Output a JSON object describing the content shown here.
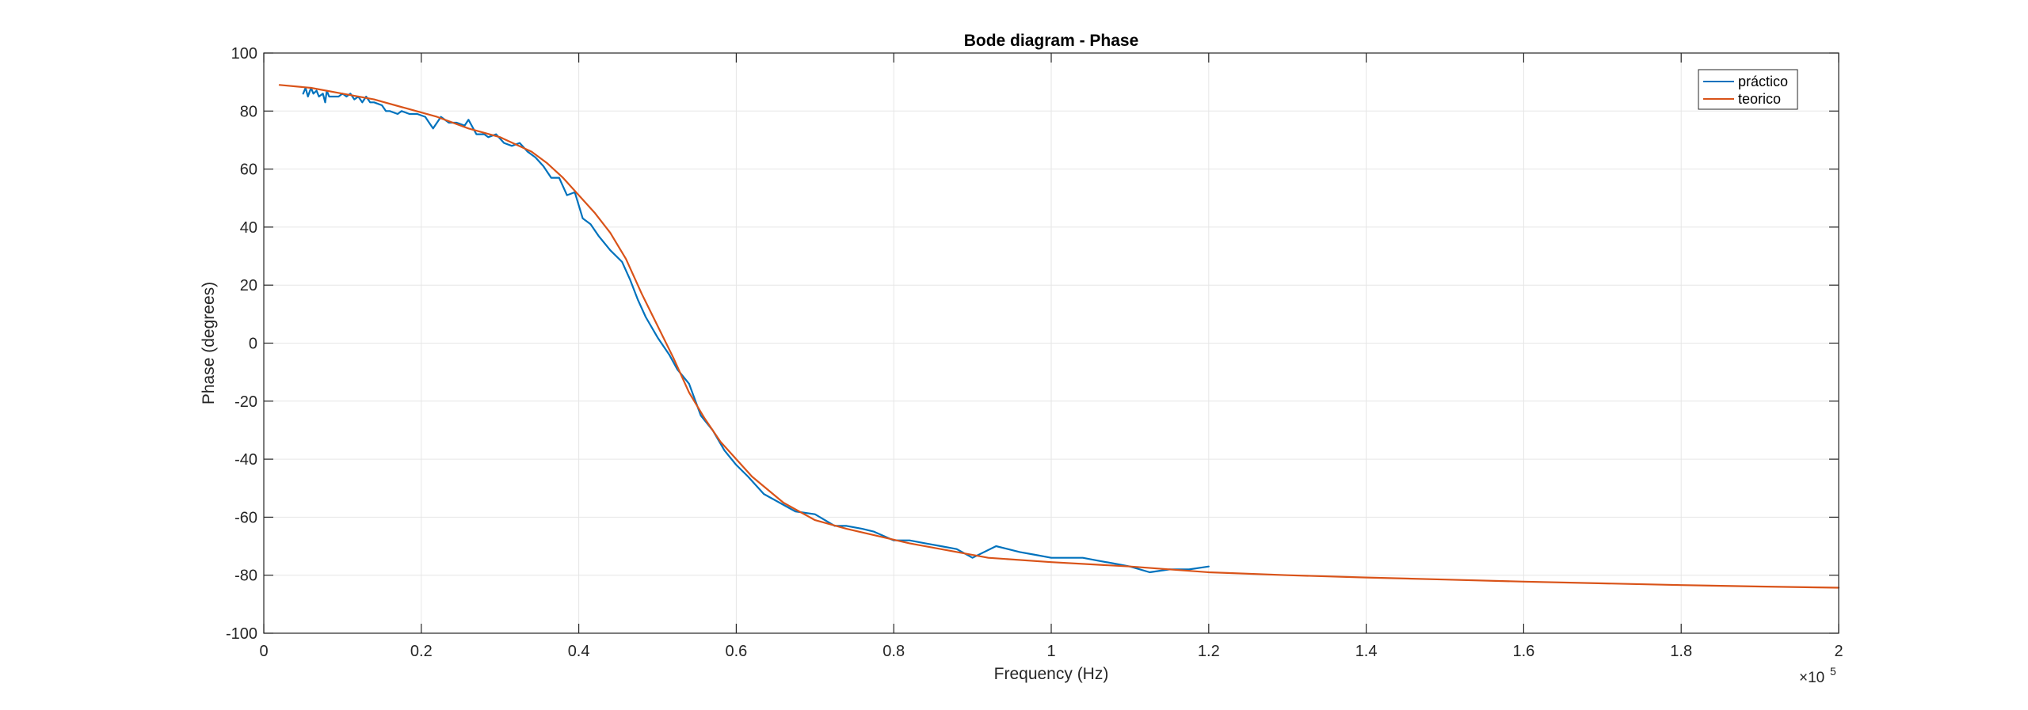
{
  "chart_data": {
    "type": "line",
    "title": "Bode diagram - Phase",
    "xlabel": "Frequency (Hz)",
    "ylabel": "Phase (degrees)",
    "xlim": [
      0,
      200000
    ],
    "ylim": [
      -100,
      100
    ],
    "x_ticks": [
      0,
      20000,
      40000,
      60000,
      80000,
      100000,
      120000,
      140000,
      160000,
      180000,
      200000
    ],
    "x_tick_labels": [
      "0",
      "0.2",
      "0.4",
      "0.6",
      "0.8",
      "1",
      "1.2",
      "1.4",
      "1.6",
      "1.8",
      "2"
    ],
    "x_exponent_base": "×10",
    "x_exponent_power": "5",
    "y_ticks": [
      -100,
      -80,
      -60,
      -40,
      -20,
      0,
      20,
      40,
      60,
      80,
      100
    ],
    "y_tick_labels": [
      "-100",
      "-80",
      "-60",
      "-40",
      "-20",
      "0",
      "20",
      "40",
      "60",
      "80",
      "100"
    ],
    "grid": true,
    "legend_position": "top-right",
    "series": [
      {
        "name": "práctico",
        "color": "#0072BD",
        "x": [
          5000,
          5300,
          5600,
          6000,
          6300,
          6700,
          7000,
          7500,
          7800,
          8000,
          8300,
          9000,
          9500,
          10000,
          10500,
          11000,
          11500,
          12000,
          12500,
          13000,
          13500,
          14000,
          15000,
          15500,
          16000,
          17000,
          17500,
          18500,
          19500,
          20500,
          21000,
          21500,
          22500,
          23500,
          24500,
          25500,
          26000,
          27000,
          28000,
          28500,
          29500,
          30500,
          31500,
          32500,
          33500,
          34500,
          35500,
          36500,
          37500,
          38500,
          39500,
          40500,
          41500,
          42500,
          44000,
          45500,
          46500,
          47500,
          48500,
          50000,
          51500,
          52500,
          54000,
          55500,
          57000,
          58500,
          60000,
          61500,
          63500,
          65500,
          67500,
          70000,
          72500,
          74000,
          76000,
          77500,
          80000,
          82000,
          84000,
          86000,
          88000,
          90000,
          93000,
          96000,
          98000,
          100000,
          102000,
          104000,
          106000,
          108000,
          110000,
          112500,
          115000,
          117500,
          120000
        ],
        "y": [
          86,
          88,
          85,
          88,
          86,
          87,
          85,
          86,
          83,
          87,
          85,
          85,
          85,
          86,
          85,
          86,
          84,
          85,
          83,
          85,
          83,
          83,
          82,
          80,
          80,
          79,
          80,
          79,
          79,
          78,
          76,
          74,
          78,
          76,
          76,
          75,
          77,
          72,
          72,
          71,
          72,
          69,
          68,
          69,
          66,
          64,
          61,
          57,
          57,
          51,
          52,
          43,
          41,
          37,
          32,
          28,
          22,
          15,
          9,
          2,
          -4,
          -9,
          -14,
          -25,
          -30,
          -37,
          -42,
          -46,
          -52,
          -55,
          -58,
          -59,
          -63,
          -63,
          -64,
          -65,
          -68,
          -68,
          -69,
          -70,
          -71,
          -74,
          -70,
          -72,
          -73,
          -74,
          -74,
          -74,
          -75,
          -76,
          -77,
          -79,
          -78,
          -78,
          -77
        ]
      },
      {
        "name": "teorico",
        "color": "#D95319",
        "x": [
          2000,
          6000,
          10000,
          14000,
          18000,
          22000,
          26000,
          30000,
          34000,
          36000,
          38000,
          40000,
          42000,
          44000,
          46000,
          48000,
          50000,
          52000,
          54000,
          56000,
          58000,
          62000,
          66000,
          70000,
          74000,
          82000,
          92000,
          100000,
          110000,
          120000,
          130000,
          140000,
          150000,
          160000,
          170000,
          180000,
          190000,
          200000
        ],
        "y": [
          89,
          88,
          86,
          84,
          81,
          78,
          74,
          71,
          66,
          62,
          57,
          51,
          45,
          38,
          29,
          17,
          6,
          -5,
          -17,
          -26,
          -34,
          -46,
          -55,
          -61,
          -64,
          -69,
          -74,
          -75.5,
          -77,
          -79,
          -80,
          -80.8,
          -81.5,
          -82.2,
          -82.8,
          -83.4,
          -83.9,
          -84.3
        ]
      }
    ]
  }
}
